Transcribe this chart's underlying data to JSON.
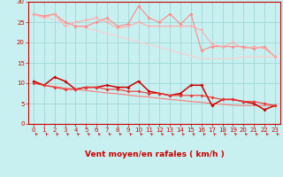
{
  "xlabel": "Vent moyen/en rafales ( km/h )",
  "bg_color": "#c8f0f0",
  "grid_color": "#a0d8d8",
  "x": [
    0,
    1,
    2,
    3,
    4,
    5,
    6,
    7,
    8,
    9,
    10,
    11,
    12,
    13,
    14,
    15,
    16,
    17,
    18,
    19,
    20,
    21,
    22,
    23
  ],
  "upper_line1": [
    27,
    26.5,
    27,
    25,
    24,
    24,
    25,
    26,
    24,
    24.5,
    29,
    26,
    25,
    27,
    24.5,
    27,
    18,
    19,
    19,
    19,
    19,
    18.5,
    19,
    16.5
  ],
  "upper_line2": [
    27,
    26,
    27,
    24,
    25,
    25.5,
    26,
    25,
    23.5,
    24,
    25,
    24,
    24,
    24,
    24,
    24,
    23,
    19.5,
    19,
    20,
    18.5,
    19,
    18.5,
    16.5
  ],
  "upper_slope": [
    27,
    26.3,
    25.6,
    24.9,
    24.2,
    23.5,
    22.9,
    22.2,
    21.5,
    20.8,
    20.1,
    19.5,
    18.8,
    18.1,
    17.4,
    16.7,
    16.0,
    16.0,
    16.0,
    16.0,
    16.5,
    16.5,
    16.5,
    16.5
  ],
  "lower_line1": [
    10.5,
    9.5,
    11.5,
    10.5,
    8.5,
    9,
    9,
    9.5,
    9,
    9,
    10.5,
    8,
    7.5,
    7,
    7.5,
    9.5,
    9.5,
    4.5,
    6,
    6,
    5.5,
    5,
    3.5,
    4.5
  ],
  "lower_line2": [
    10,
    9.5,
    9,
    8.5,
    8.5,
    9,
    9,
    8.5,
    8.5,
    8,
    8,
    7.5,
    7.5,
    7,
    7,
    7,
    7,
    6.5,
    6,
    6,
    5.5,
    5.5,
    5,
    4.5
  ],
  "lower_slope": [
    10,
    9.5,
    9.2,
    8.8,
    8.5,
    8.2,
    7.9,
    7.6,
    7.4,
    7.1,
    6.8,
    6.6,
    6.3,
    6.0,
    5.8,
    5.5,
    5.3,
    5.0,
    4.8,
    4.6,
    4.5,
    4.5,
    4.5,
    4.5
  ],
  "ylim": [
    0,
    30
  ],
  "xlim": [
    -0.5,
    23.5
  ],
  "yticks": [
    0,
    5,
    10,
    15,
    20,
    25,
    30
  ],
  "xticks": [
    0,
    1,
    2,
    3,
    4,
    5,
    6,
    7,
    8,
    9,
    10,
    11,
    12,
    13,
    14,
    15,
    16,
    17,
    18,
    19,
    20,
    21,
    22,
    23
  ],
  "red_color": "#cc0000",
  "pink1": "#ff8888",
  "pink2": "#ffaaaa",
  "pink3": "#ffcccc",
  "dark_red": "#cc0000",
  "med_red": "#ee3333",
  "light_red": "#ff7777"
}
